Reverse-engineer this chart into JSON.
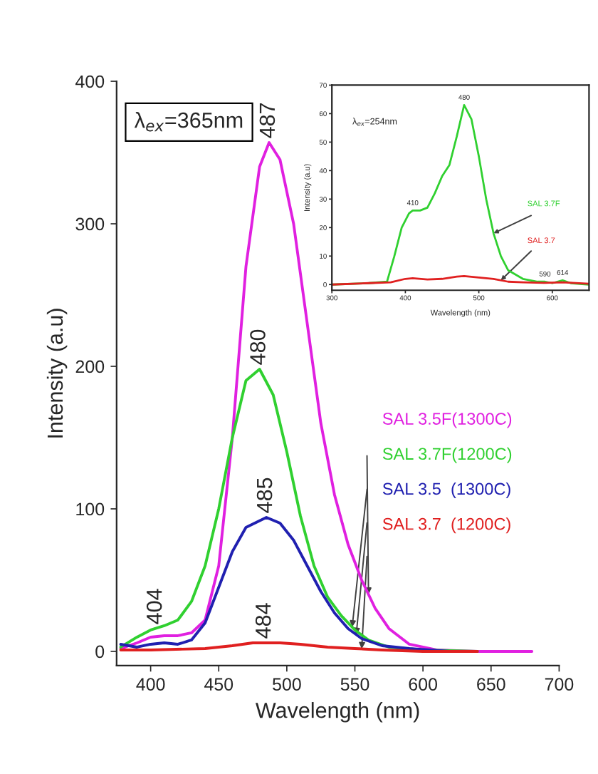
{
  "chart_data": [
    {
      "type": "line",
      "xlabel": "Wavelength (nm)",
      "ylabel": "Intensity (a.u)",
      "xlim": [
        375,
        700
      ],
      "ylim": [
        -10,
        400
      ],
      "xticks": [
        400,
        450,
        500,
        550,
        600,
        650,
        700
      ],
      "yticks": [
        0,
        100,
        200,
        300,
        400
      ],
      "grid": false,
      "legend": false,
      "annotations": [
        "λ$_{ex}$=365nm",
        {
          "text": "487",
          "x": 487,
          "y": 357
        },
        {
          "text": "480",
          "x": 480,
          "y": 198
        },
        {
          "text": "485",
          "x": 485,
          "y": 94
        },
        {
          "text": "484",
          "x": 484,
          "y": 6
        },
        {
          "text": "404",
          "x": 404,
          "y": 16
        }
      ],
      "series": [
        {
          "name": "SAL 3.5F(1300C)",
          "color": "#e020e0",
          "x": [
            378,
            390,
            400,
            410,
            420,
            430,
            440,
            450,
            460,
            470,
            480,
            487,
            495,
            505,
            515,
            525,
            535,
            545,
            555,
            565,
            575,
            590,
            610,
            640,
            680
          ],
          "values": [
            2,
            6,
            10,
            11,
            11,
            13,
            22,
            60,
            150,
            270,
            340,
            357,
            345,
            300,
            230,
            160,
            110,
            75,
            50,
            30,
            16,
            5,
            1,
            0,
            0
          ]
        },
        {
          "name": "SAL 3.7F(1200C)",
          "color": "#30d030",
          "x": [
            378,
            390,
            400,
            410,
            420,
            430,
            440,
            450,
            460,
            470,
            480,
            490,
            500,
            510,
            520,
            530,
            540,
            550,
            560,
            575,
            600,
            640
          ],
          "values": [
            3,
            10,
            15,
            18,
            22,
            35,
            60,
            100,
            150,
            190,
            198,
            180,
            140,
            95,
            60,
            38,
            25,
            15,
            8,
            3,
            1,
            0
          ]
        },
        {
          "name": "SAL 3.5  (1300C)",
          "color": "#2020b0",
          "x": [
            378,
            390,
            400,
            410,
            420,
            430,
            440,
            450,
            460,
            470,
            485,
            495,
            505,
            515,
            525,
            535,
            545,
            555,
            570,
            590,
            620
          ],
          "values": [
            5,
            3,
            5,
            6,
            5,
            8,
            20,
            45,
            70,
            87,
            94,
            90,
            78,
            60,
            42,
            27,
            16,
            9,
            4,
            2,
            0
          ]
        },
        {
          "name": "SAL 3.7  (1200C)",
          "color": "#e02020",
          "x": [
            378,
            400,
            440,
            460,
            475,
            484,
            495,
            510,
            530,
            550,
            570,
            600,
            640
          ],
          "values": [
            1,
            1,
            2,
            4,
            6,
            6,
            6,
            5,
            3,
            2,
            1,
            0,
            0
          ]
        }
      ]
    },
    {
      "type": "line",
      "xlabel": "Wavelength (nm)",
      "ylabel": "Intensity (a.u)",
      "xlim": [
        300,
        650
      ],
      "ylim": [
        -2,
        70
      ],
      "xticks": [
        300,
        400,
        500,
        600
      ],
      "yticks": [
        0,
        10,
        20,
        30,
        40,
        50,
        60,
        70
      ],
      "grid": false,
      "legend": false,
      "annotations": [
        "λ$_{ex}$=254nm",
        {
          "text": "410",
          "x": 410,
          "y": 26
        },
        {
          "text": "480",
          "x": 480,
          "y": 63
        },
        {
          "text": "590",
          "x": 590,
          "y": 1
        },
        {
          "text": "614",
          "x": 614,
          "y": 1.5
        }
      ],
      "series": [
        {
          "name": "SAL 3.7F",
          "color": "#30d030",
          "x": [
            300,
            350,
            375,
            385,
            395,
            405,
            410,
            420,
            430,
            440,
            450,
            460,
            470,
            480,
            490,
            500,
            510,
            520,
            530,
            540,
            560,
            580,
            590,
            600,
            614,
            625,
            650
          ],
          "values": [
            0,
            0.5,
            1,
            10,
            20,
            25,
            26,
            26,
            27,
            32,
            38,
            42,
            52,
            63,
            58,
            45,
            30,
            18,
            10,
            5,
            2,
            1,
            1,
            0.5,
            1.5,
            0.5,
            0
          ]
        },
        {
          "name": "SAL 3.7",
          "color": "#e02020",
          "x": [
            300,
            350,
            380,
            400,
            410,
            430,
            450,
            470,
            480,
            500,
            520,
            540,
            560,
            590,
            614,
            650
          ],
          "values": [
            0,
            0.5,
            0.8,
            2,
            2.2,
            1.8,
            2,
            2.8,
            3,
            2.5,
            2,
            1,
            0.8,
            0.6,
            0.8,
            0.3
          ]
        }
      ]
    }
  ]
}
